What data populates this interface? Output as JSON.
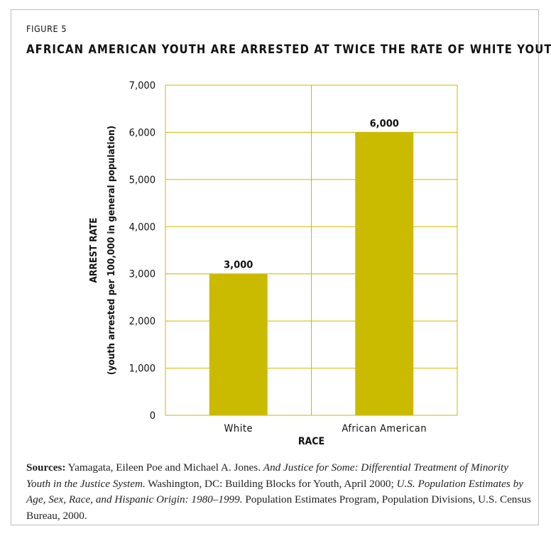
{
  "figure_label": "FIGURE 5",
  "title": "AFRICAN AMERICAN YOUTH ARE ARRESTED AT TWICE THE RATE OF WHITE YOUTH",
  "colors": {
    "bar": "#cbbb00",
    "grid": "#cbbb00",
    "text": "#111111"
  },
  "chart_data": {
    "type": "bar",
    "categories": [
      "White",
      "African American"
    ],
    "values": [
      3000,
      6000
    ],
    "data_labels": [
      "3,000",
      "6,000"
    ],
    "xlabel": "RACE",
    "ylabel_line1": "ARREST RATE",
    "ylabel_line2": "(youth arrested per 100,000 in general population)",
    "ylim": [
      0,
      7000
    ],
    "yticks": [
      0,
      1000,
      2000,
      3000,
      4000,
      5000,
      6000,
      7000
    ],
    "ytick_labels": [
      "0",
      "1,000",
      "2,000",
      "3,000",
      "4,000",
      "5,000",
      "6,000",
      "7,000"
    ],
    "grid": true,
    "legend": "none"
  },
  "sources": {
    "label": "Sources:",
    "part1": " Yamagata, Eileen Poe and Michael A. Jones. ",
    "title1": "And Justice for Some: Differential Treatment of Minority Youth in the Justice System.",
    "part2": " Washington, DC: Building Blocks for Youth, April 2000; ",
    "title2": "U.S. Population Estimates by Age, Sex, Race, and Hispanic Origin: 1980–1999.",
    "part3": " Population Estimates Program, Population Divisions, U.S. Census Bureau, 2000."
  }
}
